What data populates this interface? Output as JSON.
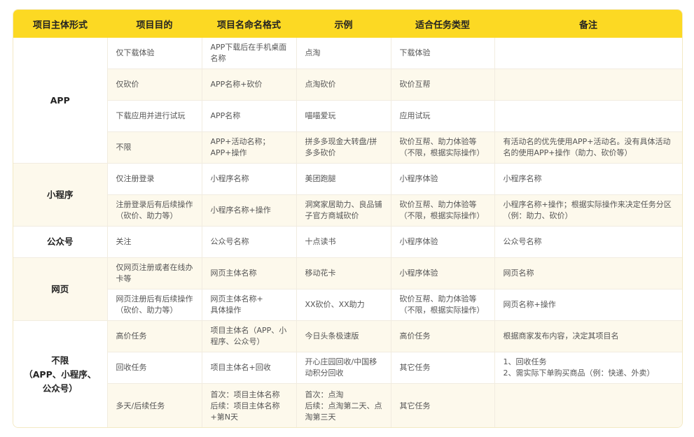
{
  "header": [
    "项目主体形式",
    "项目目的",
    "项目名命名格式",
    "示例",
    "适合任务类型",
    "备注"
  ],
  "groups": [
    {
      "name": "APP",
      "rows": [
        [
          "仅下载体验",
          "APP下载后在手机桌面名称",
          "点淘",
          "下载体验",
          ""
        ],
        [
          "仅砍价",
          "APP名称+砍价",
          "点淘砍价",
          "砍价互帮",
          ""
        ],
        [
          "下载应用并进行试玩",
          "APP名称",
          "喵喵爱玩",
          "应用试玩",
          ""
        ],
        [
          "不限",
          "APP+活动名称；\nAPP+操作",
          "拼多多现金大转盘/拼多多砍价",
          "砍价互帮、助力体验等\n（不限，根据实际操作）",
          "有活动名的优先使用APP+活动名。没有具体活动名的使用APP+操作（助力、砍价等）"
        ]
      ]
    },
    {
      "name": "小程序",
      "rows": [
        [
          "仅注册登录",
          "小程序名称",
          "美团跑腿",
          "小程序体验",
          "小程序名称"
        ],
        [
          "注册登录后有后续操作（砍价、助力等）",
          "小程序名称+操作",
          "洞窝家居助力、良品铺子官方商城砍价",
          "砍价互帮、助力体验等\n（不限，根据实际操作）",
          "小程序名称+操作；根据实际操作来决定任务分区（例：助力、砍价）"
        ]
      ]
    },
    {
      "name": "公众号",
      "rows": [
        [
          "关注",
          "公众号名称",
          "十点读书",
          "小程序体验",
          "公众号名称"
        ]
      ]
    },
    {
      "name": "网页",
      "rows": [
        [
          "仅网页注册或者在线办卡等",
          "网页主体名称",
          "移动花卡",
          "小程序体验",
          "网页名称"
        ],
        [
          "网页注册后有后续操作（砍价、助力等）",
          "网页主体名称+\n具体操作",
          "XX砍价、XX助力",
          "砍价互帮、助力体验等\n（不限，根据实际操作）",
          "网页名称+操作"
        ]
      ]
    },
    {
      "name": "不限\n（APP、小程序、\n公众号）",
      "rows": [
        [
          "高价任务",
          "项目主体名（APP、小程序、公众号）",
          "今日头条极速版",
          "高价任务",
          "根据商家发布内容，决定其项目名"
        ],
        [
          "回收任务",
          "项目主体名+回收",
          "开心庄园回收/中国移动积分回收",
          "其它任务",
          "1、回收任务\n2、需实际下单购买商品（例：快递、外卖）"
        ],
        [
          "多天/后续任务",
          "首次：项目主体名称\n后续：项目主体名称+第N天",
          "首次：点淘\n后续：点淘第二天、点淘第三天",
          "其它任务",
          ""
        ]
      ]
    }
  ]
}
